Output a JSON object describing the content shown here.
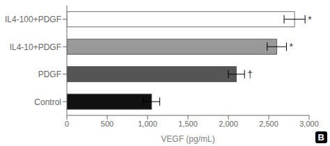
{
  "chart_data": {
    "type": "bar",
    "orientation": "horizontal",
    "categories": [
      "Control",
      "PDGF",
      "IL4-10+PDGF",
      "IL4-100+PDGF"
    ],
    "values": [
      1050,
      2100,
      2600,
      2820
    ],
    "errors": [
      100,
      100,
      120,
      130
    ],
    "colors": [
      "#111111",
      "#555555",
      "#999999",
      "#ffffff"
    ],
    "annotations": [
      null,
      "†",
      "*",
      "*"
    ],
    "xlabel": "VEGF (pg/mL)",
    "xlim": [
      0,
      3000
    ],
    "xticks": [
      0,
      500,
      {
        "value": 1000,
        "label": "1,000"
      },
      {
        "value": 1500,
        "label": "1,500"
      },
      {
        "value": 2000,
        "label": "2,000"
      },
      {
        "value": 2500,
        "label": "2,500"
      },
      {
        "value": 3000,
        "label": "3,000"
      }
    ],
    "grid": false,
    "panel_label": "B"
  }
}
